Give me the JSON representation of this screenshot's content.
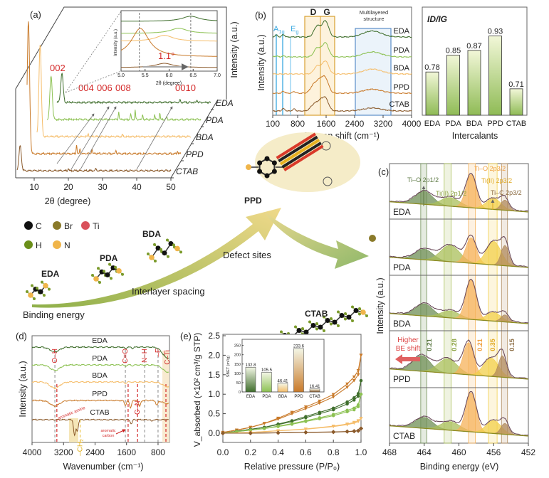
{
  "panel_labels": {
    "a": "(a)",
    "b": "(b)",
    "c": "(c)",
    "d": "(d)",
    "e": "(e)"
  },
  "samples": [
    "EDA",
    "PDA",
    "BDA",
    "PPD",
    "CTAB"
  ],
  "sample_colors": {
    "EDA": "#3f6e2c",
    "PDA": "#8cc152",
    "BDA": "#f5bd6a",
    "PPD": "#c97a2a",
    "CTAB": "#8b5a2b"
  },
  "chart_data": [
    {
      "id": "xrd",
      "type": "line",
      "xlabel": "2θ (degree)",
      "ylabel": "Intensity (a.u.)",
      "xticks": [
        "10",
        "20",
        "30",
        "40",
        "50"
      ],
      "xlim": [
        5,
        50
      ],
      "peak_labels": {
        "p002": "002",
        "p004": "004",
        "p006": "006",
        "p008": "008",
        "p0010": "0010"
      },
      "series": [
        {
          "name": "EDA",
          "peaks": [
            [
              6.45,
              0.22
            ],
            [
              41,
              0.02
            ],
            [
              46,
              0.02
            ]
          ]
        },
        {
          "name": "PDA",
          "peaks": [
            [
              6.2,
              0.33
            ],
            [
              26,
              0.06
            ],
            [
              29.5,
              0.04
            ],
            [
              30.8,
              0.07
            ],
            [
              33,
              0.04
            ],
            [
              36.5,
              0.04
            ],
            [
              38,
              0.05
            ],
            [
              40,
              0.02
            ]
          ]
        },
        {
          "name": "BDA",
          "peaks": [
            [
              5.9,
              0.7
            ],
            [
              20,
              0.02
            ],
            [
              30,
              0.015
            ]
          ]
        },
        {
          "name": "PPD",
          "peaks": [
            [
              5.4,
              1.0
            ],
            [
              19.5,
              0.07
            ],
            [
              20.5,
              0.04
            ],
            [
              24,
              0.04
            ],
            [
              31,
              0.03
            ],
            [
              49,
              0.02
            ]
          ]
        },
        {
          "name": "CTAB",
          "peaks": [
            [
              5.9,
              0.19
            ],
            [
              20,
              0.02
            ],
            [
              28,
              0.015
            ]
          ]
        }
      ],
      "inset": {
        "xlabel": "2θ (degree)",
        "ylabel": "Intensity (a.u.)",
        "xticks": [
          "5.0",
          "5.5",
          "6.0",
          "6.5",
          "7.0"
        ],
        "xlim": [
          5.0,
          7.0
        ],
        "annotation": "1.1°",
        "reference_lines": [
          5.38,
          6.45
        ]
      }
    },
    {
      "id": "raman",
      "type": "line",
      "xlabel": "Raman shift (cm⁻¹)",
      "ylabel": "Intensity (a.u.)",
      "xticks": [
        "100",
        "800",
        "1600",
        "2400",
        "3200",
        "4000"
      ],
      "xlim": [
        100,
        4000
      ],
      "bands": {
        "a1g": "A",
        "a1g_sub": "1g",
        "eg": "E",
        "eg_sub": "g",
        "d": "D",
        "g": "G",
        "multilayer": "Multilayered structure"
      },
      "series": [
        {
          "name": "EDA",
          "peaks": [
            [
              200,
              0.1
            ],
            [
              400,
              0.12
            ],
            [
              1350,
              0.55
            ],
            [
              1580,
              0.8
            ],
            [
              2900,
              0.3
            ]
          ]
        },
        {
          "name": "PDA",
          "peaks": [
            [
              200,
              0.05
            ],
            [
              400,
              0.05
            ],
            [
              1350,
              0.45
            ],
            [
              1580,
              0.7
            ],
            [
              2900,
              0.25
            ]
          ]
        },
        {
          "name": "BDA",
          "peaks": [
            [
              1350,
              0.4
            ],
            [
              1580,
              0.65
            ],
            [
              2900,
              0.25
            ]
          ]
        },
        {
          "name": "PPD",
          "peaks": [
            [
              400,
              0.1
            ],
            [
              700,
              0.08
            ],
            [
              1250,
              0.4
            ],
            [
              1420,
              0.55
            ],
            [
              1580,
              0.7
            ],
            [
              2900,
              0.2
            ]
          ]
        },
        {
          "name": "CTAB",
          "peaks": [
            [
              400,
              0.12
            ],
            [
              700,
              0.1
            ],
            [
              1250,
              0.3
            ],
            [
              1420,
              0.4
            ],
            [
              1580,
              0.6
            ],
            [
              2900,
              0.15
            ]
          ]
        }
      ]
    },
    {
      "id": "id_ig",
      "type": "bar",
      "title": "ID/IG",
      "xlabel": "Intercalants",
      "categories": [
        "EDA",
        "PDA",
        "BDA",
        "PPD",
        "CTAB"
      ],
      "values": [
        0.78,
        0.85,
        0.87,
        0.93,
        0.71
      ],
      "value_labels": [
        "0.78",
        "0.85",
        "0.87",
        "0.93",
        "0.71"
      ],
      "ylim": [
        0.6,
        1.05
      ]
    },
    {
      "id": "xps",
      "type": "line",
      "xlabel": "Binding energy (eV)",
      "ylabel": "Intensity (a.u.)",
      "xticks": [
        "468",
        "464",
        "460",
        "456",
        "452"
      ],
      "xlim": [
        468,
        452
      ],
      "components": [
        "Ti–O 2p1/2",
        "Ti(II) 2p1/2",
        "Ti–O 2p3/2",
        "Ti(II) 2p3/2",
        "Ti–C 2p3/2"
      ],
      "component_labels": [
        {
          "main": "Ti–O 2p",
          "sub": "1/2"
        },
        {
          "main": "Ti(II) 2p",
          "sub": "1/2"
        },
        {
          "main": "Ti–O 2p",
          "sub": "3/2"
        },
        {
          "main": "Ti(II) 2p",
          "sub": "3/2"
        },
        {
          "main": "Ti–C 2p",
          "sub": "3/2"
        }
      ],
      "component_colors": [
        "#6f8f55",
        "#a9bf5a",
        "#f6b25a",
        "#f2cf4a",
        "#b08a5c"
      ],
      "series": [
        {
          "name": "EDA",
          "centers": [
            464.0,
            461.0,
            458.6,
            456.0,
            454.7
          ],
          "intensities": [
            0.33,
            0.22,
            0.85,
            0.28,
            0.26
          ]
        },
        {
          "name": "PDA",
          "centers": [
            464.0,
            461.0,
            458.6,
            456.0,
            454.7
          ],
          "intensities": [
            0.27,
            0.42,
            0.65,
            0.6,
            0.52
          ]
        },
        {
          "name": "BDA",
          "centers": [
            464.0,
            461.0,
            458.6,
            456.0,
            454.7
          ],
          "intensities": [
            0.31,
            0.18,
            1.0,
            0.22,
            0.18
          ]
        },
        {
          "name": "PPD",
          "centers": [
            464.3,
            461.3,
            458.9,
            456.3,
            455.0
          ],
          "intensities": [
            0.4,
            0.37,
            0.82,
            0.47,
            0.55
          ]
        },
        {
          "name": "CTAB",
          "centers": [
            464.0,
            461.0,
            458.6,
            456.0,
            454.7
          ],
          "intensities": [
            0.28,
            0.22,
            1.0,
            0.33,
            0.28
          ]
        }
      ],
      "shift_values": [
        "0.21",
        "0.28",
        "0.21",
        "0.35",
        "0.15"
      ],
      "shift_annotation": [
        "Higher",
        "BE shift"
      ]
    },
    {
      "id": "ftir",
      "type": "line",
      "xlabel": "Wavenumber (cm⁻¹)",
      "ylabel": "Intensity (a.u.)",
      "xticks": [
        "4000",
        "3200",
        "2400",
        "1600",
        "800"
      ],
      "xlim": [
        4000,
        530
      ],
      "bond_labels": {
        "oh": "O–H",
        "co": "C=O",
        "nh": "N–H",
        "f": "–F",
        "cti": "C–Ti",
        "cn": "C–N",
        "ch2": "–CH₂",
        "aromatic_amine": "aromatic amine",
        "aromatic_carbon": [
          "aromatic",
          "carbon"
        ]
      },
      "series": [
        {
          "name": "EDA",
          "dips": [
            [
              3420,
              0.3
            ],
            [
              1630,
              0.1
            ],
            [
              1450,
              0.08
            ],
            [
              560,
              0.7
            ]
          ]
        },
        {
          "name": "PDA",
          "dips": [
            [
              3420,
              0.35
            ],
            [
              1630,
              0.1
            ],
            [
              1450,
              0.06
            ],
            [
              560,
              0.45
            ]
          ]
        },
        {
          "name": "BDA",
          "dips": [
            [
              3420,
              0.4
            ],
            [
              1630,
              0.1
            ],
            [
              560,
              0.3
            ]
          ]
        },
        {
          "name": "PPD",
          "dips": [
            [
              3420,
              0.35
            ],
            [
              1630,
              0.3
            ],
            [
              1500,
              0.45
            ],
            [
              1270,
              0.4
            ],
            [
              830,
              0.3
            ],
            [
              560,
              0.2
            ]
          ]
        },
        {
          "name": "CTAB",
          "dips": [
            [
              2920,
              1.0
            ],
            [
              2850,
              0.7
            ],
            [
              1480,
              0.25
            ],
            [
              960,
              0.1
            ]
          ]
        }
      ]
    },
    {
      "id": "bet",
      "type": "line",
      "xlabel": "Relative pressure (P/P₀)",
      "ylabel": "V_absorbed (×10² cm³/g STP)",
      "xticks": [
        "0.0",
        "0.2",
        "0.4",
        "0.6",
        "0.8",
        "1.0"
      ],
      "yticks": [
        "0.0",
        "0.5",
        "1.0",
        "1.5",
        "2.0",
        "2.5"
      ],
      "xlim": [
        0,
        1
      ],
      "ylim": [
        -0.2,
        2.5
      ],
      "series": [
        {
          "name": "PPD",
          "x": [
            0,
            0.1,
            0.2,
            0.3,
            0.4,
            0.5,
            0.6,
            0.7,
            0.8,
            0.9,
            0.95,
            0.98,
            1.0
          ],
          "y": [
            0.02,
            0.08,
            0.15,
            0.25,
            0.36,
            0.5,
            0.63,
            0.77,
            0.93,
            1.18,
            1.35,
            1.5,
            2.0
          ]
        },
        {
          "name": "EDA",
          "x": [
            0,
            0.1,
            0.2,
            0.3,
            0.4,
            0.5,
            0.6,
            0.7,
            0.8,
            0.9,
            0.95,
            0.98,
            1.0
          ],
          "y": [
            0.0,
            0.05,
            0.1,
            0.15,
            0.22,
            0.3,
            0.4,
            0.5,
            0.6,
            0.75,
            0.85,
            0.95,
            1.35
          ]
        },
        {
          "name": "PDA",
          "x": [
            0,
            0.1,
            0.2,
            0.3,
            0.4,
            0.5,
            0.6,
            0.7,
            0.8,
            0.9,
            0.95,
            0.98,
            1.0
          ],
          "y": [
            0.0,
            0.04,
            0.08,
            0.12,
            0.17,
            0.23,
            0.3,
            0.37,
            0.45,
            0.55,
            0.6,
            0.68,
            1.0
          ]
        },
        {
          "name": "BDA",
          "x": [
            0,
            0.2,
            0.4,
            0.6,
            0.8,
            0.9,
            0.95,
            0.98,
            1.0
          ],
          "y": [
            0.0,
            0.02,
            0.06,
            0.1,
            0.17,
            0.22,
            0.26,
            0.3,
            0.38
          ]
        },
        {
          "name": "CTAB",
          "x": [
            0,
            0.2,
            0.4,
            0.6,
            0.8,
            0.9,
            0.95,
            0.98,
            1.0
          ],
          "y": [
            0.0,
            0.0,
            0.01,
            0.02,
            0.03,
            0.04,
            0.05,
            0.06,
            0.12
          ]
        }
      ],
      "inset": {
        "type": "bar",
        "ylabel": "SBET (m²/g)",
        "categories": [
          "EDA",
          "PDA",
          "BDA",
          "PPD",
          "CTAB"
        ],
        "values": [
          132.8,
          105.5,
          46.41,
          233.6,
          16.41
        ],
        "value_labels": [
          "132.8",
          "105.5",
          "46.41",
          "233.6",
          "16.41"
        ],
        "yticks": [
          "0",
          "50",
          "100",
          "150",
          "200",
          "250"
        ],
        "ylim": [
          0,
          260
        ]
      }
    }
  ],
  "schematic": {
    "legend": [
      {
        "symbol": "C",
        "color": "#111111"
      },
      {
        "symbol": "Br",
        "color": "#8a7a2a"
      },
      {
        "symbol": "Ti",
        "color": "#d9505a"
      },
      {
        "symbol": "H",
        "color": "#6b8f1a"
      },
      {
        "symbol": "N",
        "color": "#f0b54a"
      }
    ],
    "molecule_labels": {
      "eda": "EDA",
      "pda": "PDA",
      "bda": "BDA",
      "ppd": "PPD",
      "ctab": "CTAB"
    },
    "arrow_labels": {
      "binding": "Binding energy",
      "spacing": "Interlayer spacing",
      "defect": "Defect sites"
    }
  }
}
